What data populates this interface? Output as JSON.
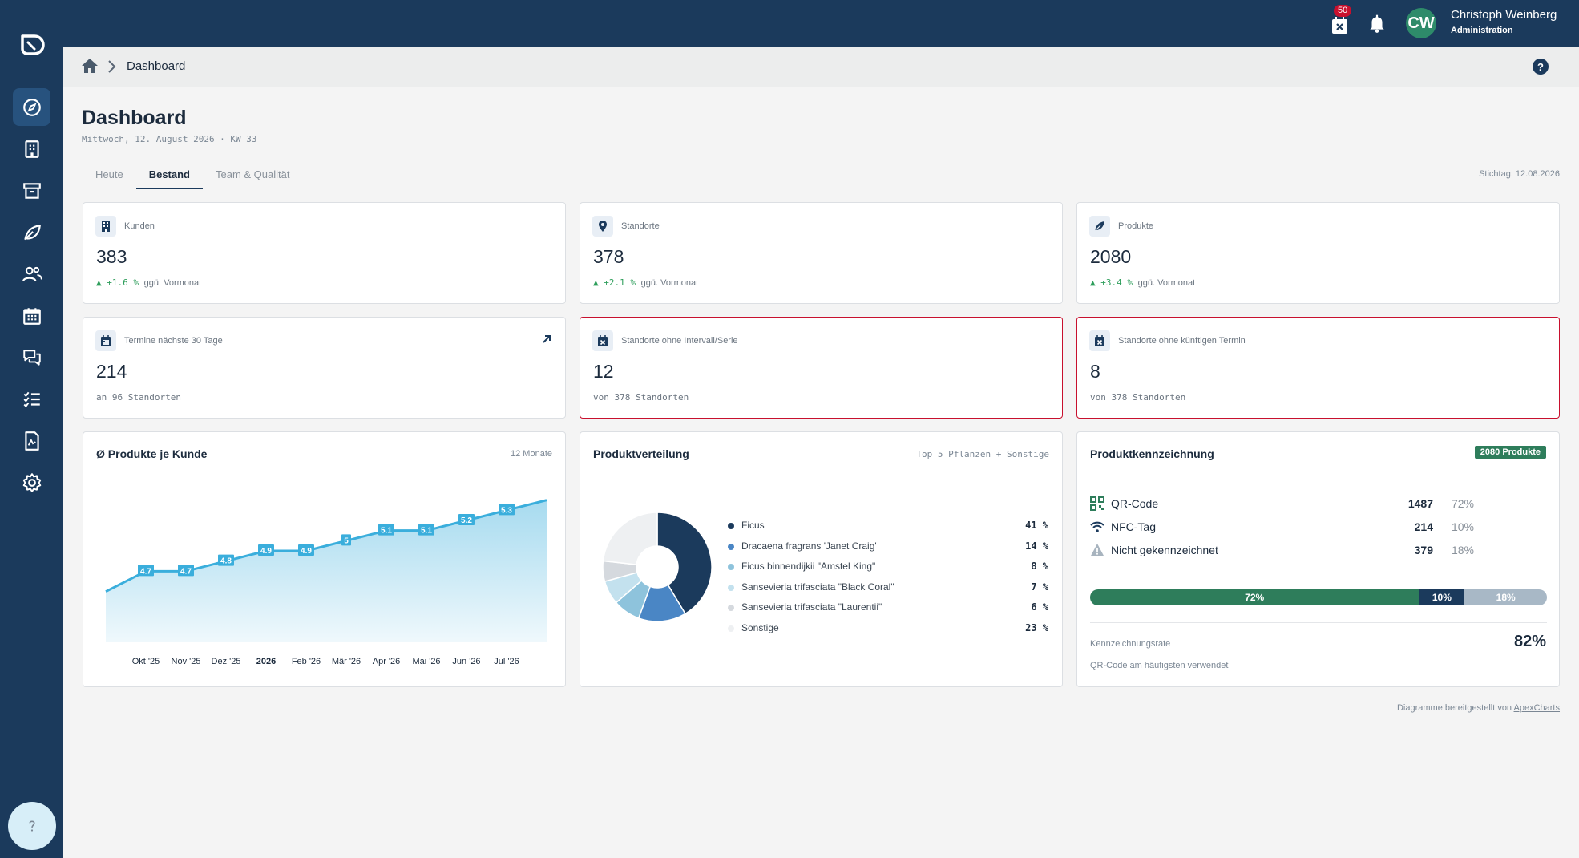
{
  "topbar": {
    "calendar_badge": "50",
    "avatar_initials": "CW",
    "user_name": "Christoph Weinberg",
    "user_role": "Administration"
  },
  "breadcrumb": {
    "current": "Dashboard",
    "help": "?"
  },
  "page": {
    "title": "Dashboard",
    "date": "Mittwoch, 12. August 2026 · KW 33",
    "tabs": [
      {
        "label": "Heute",
        "active": false
      },
      {
        "label": "Bestand",
        "active": true
      },
      {
        "label": "Team & Qualität",
        "active": false
      }
    ],
    "stichtag": "Stichtag: 12.08.2026"
  },
  "kpis": [
    {
      "label": "Kunden",
      "value": "383",
      "delta": "+1.6 %",
      "delta_suffix": "ggü. Vormonat",
      "icon": "building-icon"
    },
    {
      "label": "Standorte",
      "value": "378",
      "delta": "+2.1 %",
      "delta_suffix": "ggü. Vormonat",
      "icon": "location-pin-icon"
    },
    {
      "label": "Produkte",
      "value": "2080",
      "delta": "+3.4 %",
      "delta_suffix": "ggü. Vormonat",
      "icon": "leaf-icon"
    },
    {
      "label": "Termine nächste 30 Tage",
      "value": "214",
      "sub": "an 96 Standorten",
      "icon": "calendar-icon"
    },
    {
      "label": "Standorte ohne Intervall/Serie",
      "value": "12",
      "sub": "von 378 Standorten",
      "icon": "calendar-x-icon",
      "alert": true
    },
    {
      "label": "Standorte ohne künftigen Termin",
      "value": "8",
      "sub": "von 378 Standorten",
      "icon": "calendar-x-icon",
      "alert": true
    }
  ],
  "line_card": {
    "title": "Ø Produkte je Kunde",
    "meta": "12 Monate"
  },
  "pie_card": {
    "title": "Produktverteilung",
    "meta": "Top 5 Pflanzen + Sonstige"
  },
  "tag_card": {
    "title": "Produktkennzeichnung",
    "badge": "2080 Produkte",
    "rows": [
      {
        "name": "QR-Code",
        "count": "1487",
        "pct": "72%",
        "icon": "qr-code-icon"
      },
      {
        "name": "NFC-Tag",
        "count": "214",
        "pct": "10%",
        "icon": "nfc-wifi-icon"
      },
      {
        "name": "Nicht gekennzeichnet",
        "count": "379",
        "pct": "18%",
        "icon": "warning-icon"
      }
    ],
    "bar": [
      {
        "label": "72%",
        "value": 72,
        "color": "#2e7d5b"
      },
      {
        "label": "10%",
        "value": 10,
        "color": "#1b3a5c"
      },
      {
        "label": "18%",
        "value": 18,
        "color": "#a8b8c6"
      }
    ],
    "rate_label": "Kennzeichnungsrate",
    "rate_value": "82%",
    "rate_sub": "QR-Code am häufigsten verwendet"
  },
  "chart_data": [
    {
      "type": "area",
      "title": "Ø Produkte je Kunde",
      "categories": [
        "",
        "Okt '25",
        "Nov '25",
        "Dez '25",
        "2026",
        "Feb '26",
        "Mär '26",
        "Apr '26",
        "Mai '26",
        "Jun '26",
        "Jul '26",
        ""
      ],
      "values": [
        4.5,
        4.7,
        4.7,
        4.8,
        4.9,
        4.9,
        5.0,
        5.1,
        5.1,
        5.2,
        5.3,
        5.4
      ],
      "data_labels": [
        "",
        "4.7",
        "4.7",
        "4.8",
        "4.9",
        "4.9",
        "5",
        "5.1",
        "5.1",
        "5.2",
        "5.3",
        ""
      ],
      "ylim": [
        4.0,
        5.5
      ],
      "color": "#3aaedc"
    },
    {
      "type": "pie",
      "title": "Produktverteilung",
      "labels": [
        "Ficus",
        "Dracaena fragrans 'Janet Craig'",
        "Ficus binnendijkii \"Amstel King\"",
        "Sansevieria trifasciata \"Black Coral\"",
        "Sansevieria trifasciata \"Laurentii\"",
        "Sonstige"
      ],
      "values": [
        41,
        14,
        8,
        7,
        6,
        23
      ],
      "pct_labels": [
        "41 %",
        "14 %",
        "8 %",
        "7 %",
        "6 %",
        "23 %"
      ],
      "colors": [
        "#1b3a5c",
        "#4a86c5",
        "#8ec3dc",
        "#c3e1ee",
        "#d5d9de",
        "#eef0f2"
      ]
    }
  ],
  "footer": {
    "text": "Diagramme bereitgestellt von",
    "link": "ApexCharts"
  }
}
